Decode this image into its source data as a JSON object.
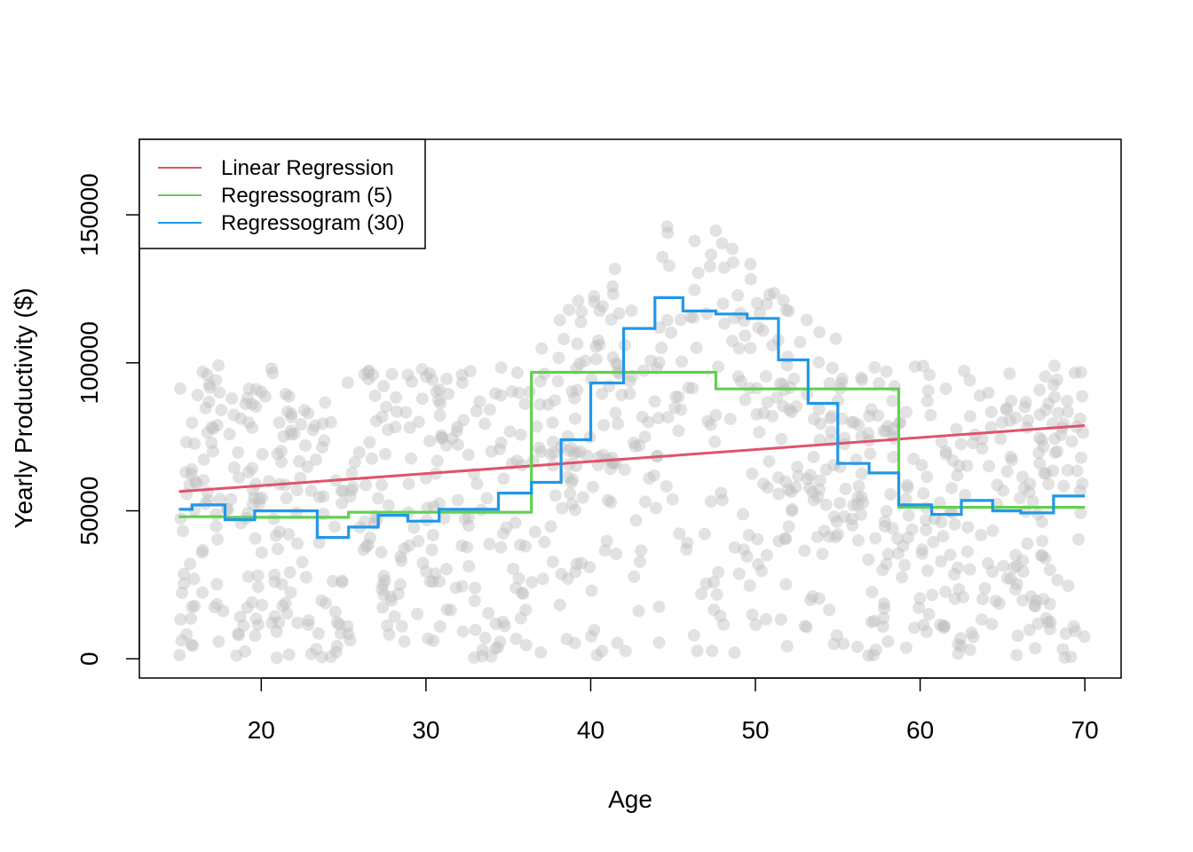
{
  "chart_data": {
    "type": "scatter",
    "xlabel": "Age",
    "ylabel": "Yearly Productivity ($)",
    "xlim": [
      12.6,
      72.2
    ],
    "ylim": [
      -6500,
      175500
    ],
    "x_ticks": [
      20,
      30,
      40,
      50,
      60,
      70
    ],
    "x_tick_labels": [
      "20",
      "30",
      "40",
      "50",
      "60",
      "70"
    ],
    "y_ticks": [
      0,
      50000,
      100000,
      150000
    ],
    "y_tick_labels": [
      "0",
      "50000",
      "100000",
      "150000"
    ],
    "grid": false,
    "legend_position": "top-left",
    "legend": [
      {
        "label": "Linear Regression",
        "color": "#DF536B"
      },
      {
        "label": "Regressogram (5)",
        "color": "#61D04F"
      },
      {
        "label": "Regressogram (30)",
        "color": "#2297E6"
      }
    ],
    "point_color": "#BEBEBE",
    "series": [
      {
        "name": "Linear Regression",
        "kind": "line",
        "color": "#DF536B",
        "x": [
          15,
          70
        ],
        "y": [
          56500,
          78800
        ]
      },
      {
        "name": "Regressogram (5)",
        "kind": "step",
        "color": "#61D04F",
        "x": [
          15,
          17.8,
          17.8,
          25.3,
          25.3,
          36.4,
          36.4,
          47.6,
          47.6,
          58.7,
          58.7,
          70
        ],
        "y": [
          48000,
          48000,
          47800,
          47800,
          49500,
          49500,
          96800,
          96800,
          91200,
          91200,
          51200,
          51200
        ]
      },
      {
        "name": "Regressogram (30)",
        "kind": "step",
        "color": "#2297E6",
        "x": [
          15,
          15.8,
          15.8,
          17.8,
          17.8,
          19.6,
          19.6,
          23.4,
          23.4,
          25.3,
          25.3,
          27.1,
          27.1,
          28.9,
          28.9,
          30.8,
          30.8,
          34.4,
          34.4,
          36.4,
          36.4,
          38.2,
          38.2,
          40.0,
          40.0,
          42.0,
          42.0,
          43.9,
          43.9,
          45.6,
          45.6,
          47.6,
          47.6,
          49.5,
          49.5,
          51.4,
          51.4,
          53.2,
          53.2,
          55.0,
          55.0,
          56.9,
          56.9,
          58.7,
          58.7,
          60.7,
          60.7,
          62.5,
          62.5,
          64.4,
          64.4,
          66.1,
          66.1,
          68.1,
          68.1,
          70
        ],
        "y": [
          50500,
          50500,
          52000,
          52000,
          47000,
          47000,
          50000,
          50000,
          41000,
          41000,
          44500,
          44500,
          48500,
          48500,
          46500,
          46500,
          50500,
          50500,
          56000,
          56000,
          59600,
          59600,
          74000,
          74000,
          93200,
          93200,
          111600,
          111600,
          122000,
          122000,
          117500,
          117500,
          116500,
          116500,
          115000,
          115000,
          101000,
          101000,
          86300,
          86300,
          66000,
          66000,
          62800,
          62800,
          52000,
          52000,
          48800,
          48800,
          53500,
          53500,
          50000,
          50000,
          49300,
          49300,
          55000,
          55000
        ]
      }
    ]
  }
}
